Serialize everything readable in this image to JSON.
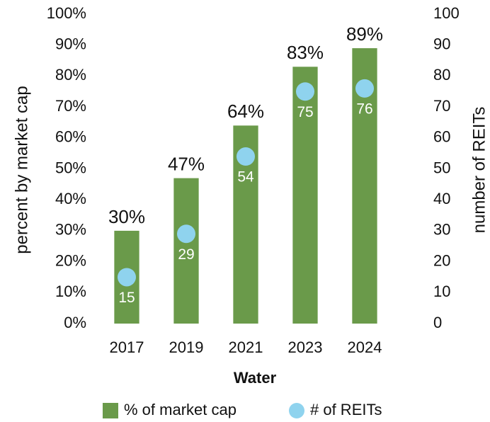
{
  "chart_data": {
    "type": "bar",
    "categories": [
      "2017",
      "2019",
      "2021",
      "2023",
      "2024"
    ],
    "series": [
      {
        "name": "% of market cap",
        "type": "bar",
        "color": "#6a9a4a",
        "values": [
          30,
          47,
          64,
          83,
          89
        ],
        "value_labels": [
          "30%",
          "47%",
          "64%",
          "83%",
          "89%"
        ]
      },
      {
        "name": "# of REITs",
        "type": "scatter",
        "color": "#8fd3ee",
        "axis": "y2",
        "values": [
          15,
          29,
          54,
          75,
          76
        ]
      }
    ],
    "xlabel": "Water",
    "ylabel": "percent by market cap",
    "y2label": "number of REITs",
    "ylim": [
      0,
      100
    ],
    "yticks": [
      {
        "value": 0,
        "label": "0%"
      },
      {
        "value": 10,
        "label": "10%"
      },
      {
        "value": 20,
        "label": "20%"
      },
      {
        "value": 30,
        "label": "30%"
      },
      {
        "value": 40,
        "label": "40%"
      },
      {
        "value": 50,
        "label": "50%"
      },
      {
        "value": 60,
        "label": "60%"
      },
      {
        "value": 70,
        "label": "70%"
      },
      {
        "value": 80,
        "label": "80%"
      },
      {
        "value": 90,
        "label": "90%"
      },
      {
        "value": 100,
        "label": "100%"
      }
    ],
    "y2lim": [
      0,
      100
    ],
    "y2ticks": [
      0,
      10,
      20,
      30,
      40,
      50,
      60,
      70,
      80,
      90,
      100
    ],
    "grid": false,
    "legend": "bottom"
  }
}
